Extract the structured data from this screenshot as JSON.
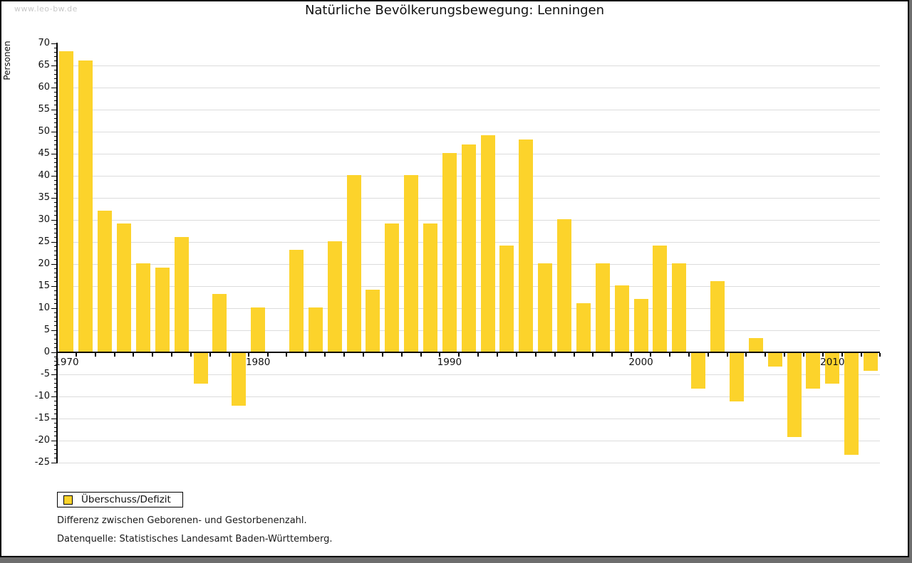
{
  "watermark": "www.leo-bw.de",
  "title": "Natürliche Bevölkerungsbewegung: Lenningen",
  "legend": {
    "label": "Überschuss/Defizit"
  },
  "footnotes": [
    "Differenz zwischen Geborenen- und Gestorbenenzahl.",
    "Datenquelle: Statistisches Landesamt Baden-Württemberg."
  ],
  "chart_data": {
    "type": "bar",
    "title": "Natürliche Bevölkerungsbewegung: Lenningen",
    "xlabel": "",
    "ylabel": "Personen",
    "series_name": "Überschuss/Defizit",
    "years": [
      1970,
      1971,
      1972,
      1973,
      1974,
      1975,
      1976,
      1977,
      1978,
      1979,
      1980,
      1981,
      1982,
      1983,
      1984,
      1985,
      1986,
      1987,
      1988,
      1989,
      1990,
      1991,
      1992,
      1993,
      1994,
      1995,
      1996,
      1997,
      1998,
      1999,
      2000,
      2001,
      2002,
      2003,
      2004,
      2005,
      2006,
      2007,
      2008,
      2009,
      2010,
      2011,
      2012
    ],
    "values": [
      68,
      66,
      32,
      29,
      20,
      19,
      26,
      -7,
      13,
      -12,
      10,
      0,
      23,
      10,
      25,
      40,
      14,
      29,
      40,
      29,
      45,
      47,
      49,
      24,
      48,
      20,
      30,
      11,
      20,
      15,
      12,
      24,
      20,
      -8,
      16,
      -11,
      3,
      -3,
      -19,
      -8,
      -7,
      -23,
      -4
    ],
    "ylim": [
      -25,
      70
    ],
    "ytick_step": 5,
    "xtick_labels": [
      "1970",
      "1980",
      "1990",
      "2000",
      "2010"
    ],
    "grid": true,
    "legend_position": "bottom-left",
    "bar_color": "#FCD32B",
    "gridline_color": "#DCDCDC",
    "axis_color": "#000000"
  }
}
